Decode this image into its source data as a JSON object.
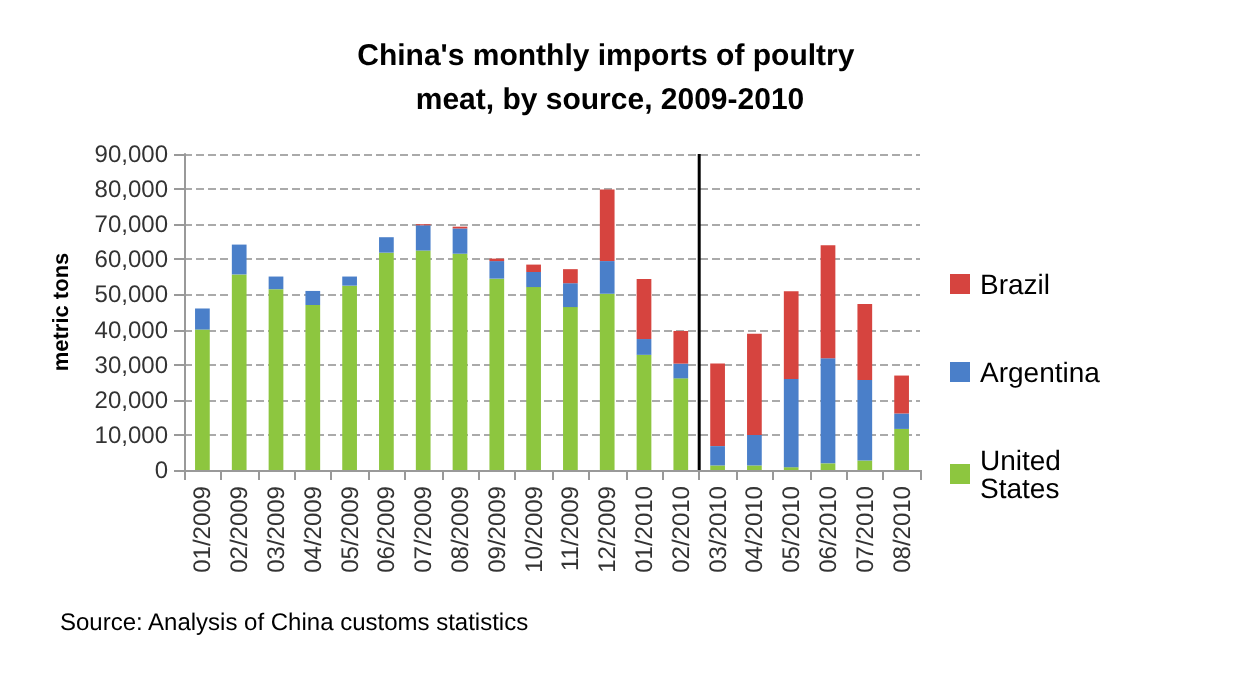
{
  "chart_data": {
    "type": "bar",
    "title": "China's monthly imports of poultry meat, by source, 2009-2010",
    "ylabel": "metric tons",
    "categories": [
      "01/2009",
      "02/2009",
      "03/2009",
      "04/2009",
      "05/2009",
      "06/2009",
      "07/2009",
      "08/2009",
      "09/2009",
      "10/2009",
      "11/2009",
      "12/2009",
      "01/2010",
      "02/2010",
      "03/2010",
      "04/2010",
      "05/2010",
      "06/2010",
      "07/2010",
      "08/2010"
    ],
    "stacked": true,
    "series": [
      {
        "name": "United States",
        "color": "#8dc63f",
        "values": [
          40000,
          55700,
          51500,
          47000,
          52500,
          61900,
          62500,
          61600,
          54500,
          52100,
          46400,
          50200,
          32800,
          26100,
          1300,
          1300,
          800,
          1900,
          2700,
          11700
        ]
      },
      {
        "name": "Argentina",
        "color": "#4a7fc9",
        "values": [
          6000,
          8500,
          3600,
          4000,
          2600,
          4400,
          7200,
          7200,
          5000,
          4300,
          6800,
          9300,
          4500,
          4200,
          5500,
          8700,
          25100,
          29900,
          22900,
          4400
        ]
      },
      {
        "name": "Brazil",
        "color": "#d6443f",
        "values": [
          null,
          null,
          null,
          null,
          null,
          null,
          300,
          500,
          700,
          2100,
          4000,
          20400,
          17100,
          9300,
          23500,
          28800,
          25000,
          32200,
          21700,
          10800
        ]
      }
    ],
    "ylim": [
      0,
      90000
    ],
    "yticks": [
      0,
      {
        "value": 10000,
        "label": "10,000"
      },
      {
        "value": 20000,
        "label": "20,000"
      },
      {
        "value": 30000,
        "label": "30,000"
      },
      {
        "value": 40000,
        "label": "40,000"
      },
      {
        "value": 50000,
        "label": "50,000"
      },
      {
        "value": 60000,
        "label": "60,000"
      },
      {
        "value": 70000,
        "label": "70,000"
      },
      {
        "value": 80000,
        "label": "80,000"
      },
      {
        "value": 90000,
        "label": "90,000"
      }
    ],
    "ref_lines": [
      {
        "axis": "x",
        "value": "02/2010",
        "color": "#000000"
      }
    ],
    "grid": "y",
    "legend": "right",
    "annotations": [
      "Source: Analysis of China customs statistics"
    ]
  }
}
